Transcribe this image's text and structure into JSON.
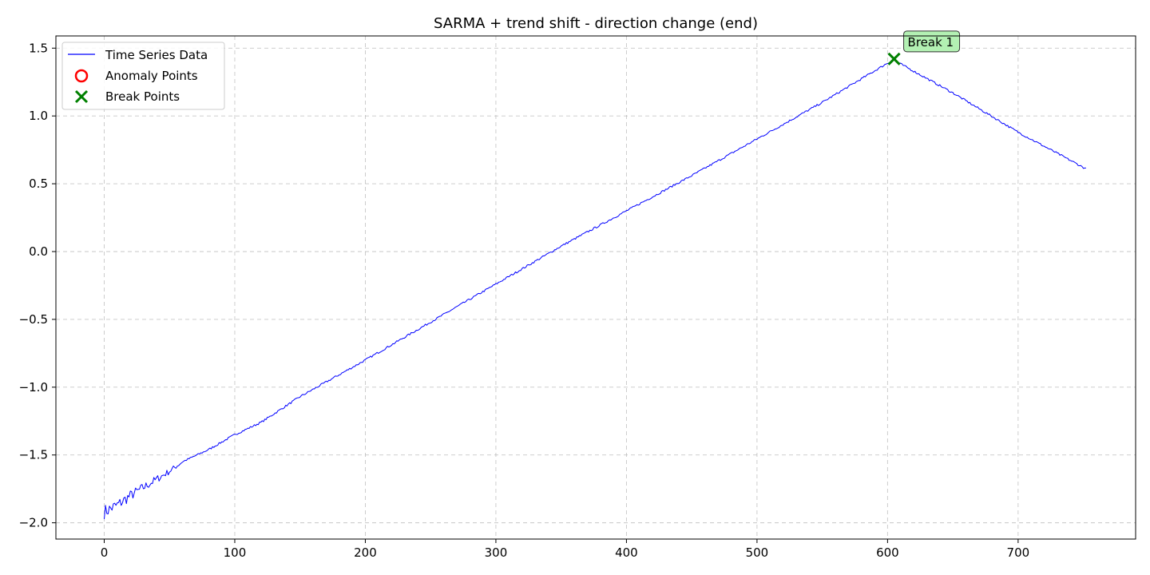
{
  "chart_data": {
    "type": "line",
    "title": "SARMA + trend shift - direction change (end)",
    "xlabel": "",
    "ylabel": "",
    "xlim": [
      -37,
      790
    ],
    "ylim": [
      -2.12,
      1.59
    ],
    "x_ticks": [
      0,
      100,
      200,
      300,
      400,
      500,
      600,
      700
    ],
    "x_tick_labels": [
      "0",
      "100",
      "200",
      "300",
      "400",
      "500",
      "600",
      "700"
    ],
    "y_ticks": [
      -2.0,
      -1.5,
      -1.0,
      -0.5,
      0.0,
      0.5,
      1.0,
      1.5
    ],
    "y_tick_labels": [
      "−2.0",
      "−1.5",
      "−1.0",
      "−0.5",
      "0.0",
      "0.5",
      "1.0",
      "1.5"
    ],
    "grid": true,
    "legend_position": "top-left",
    "series": [
      {
        "name": "Time Series Data",
        "color": "#0000ff",
        "x": [
          0,
          10,
          20,
          30,
          40,
          50,
          60,
          80,
          100,
          120,
          150,
          200,
          250,
          300,
          350,
          400,
          450,
          500,
          550,
          600,
          605,
          650,
          700,
          752
        ],
        "y": [
          -1.92,
          -1.87,
          -1.8,
          -1.74,
          -1.68,
          -1.62,
          -1.55,
          -1.46,
          -1.35,
          -1.26,
          -1.07,
          -0.8,
          -0.52,
          -0.24,
          0.04,
          0.3,
          0.56,
          0.83,
          1.1,
          1.39,
          1.41,
          1.17,
          0.88,
          0.61
        ]
      }
    ],
    "anomaly_points": {
      "name": "Anomaly Points",
      "color": "#ff0000",
      "x": [],
      "y": []
    },
    "break_points": {
      "name": "Break Points",
      "color": "#008000",
      "x": [
        605
      ],
      "y": [
        1.42
      ],
      "labels": [
        "Break 1"
      ]
    }
  },
  "colors": {
    "line": "#0000ff",
    "anomaly": "#ff0000",
    "break": "#008000",
    "annotation_bg": "#b3f0b3"
  }
}
